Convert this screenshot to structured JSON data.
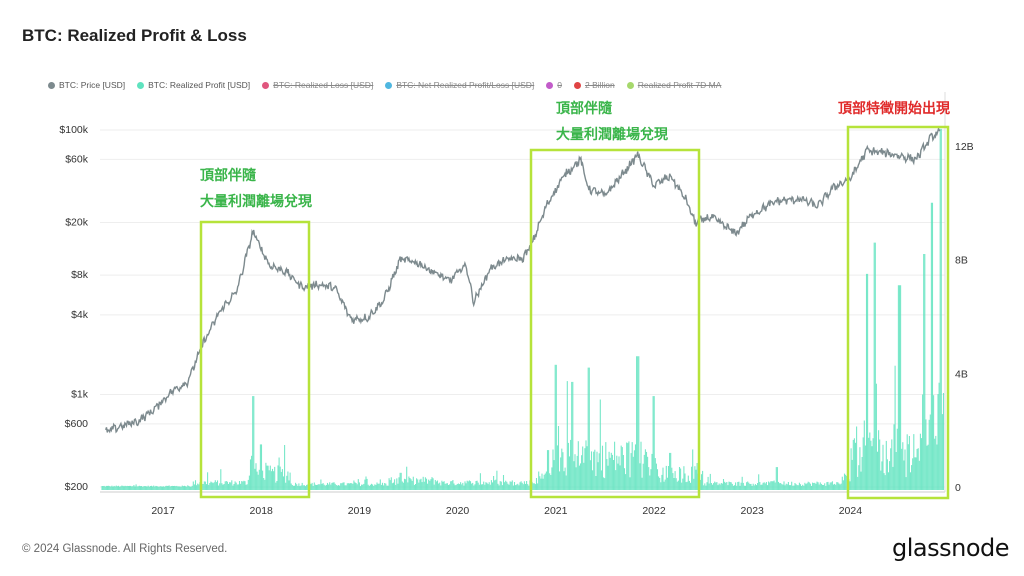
{
  "title": "BTC: Realized Profit & Loss",
  "legend": [
    {
      "label": "BTC: Price [USD]",
      "color": "#7d8a8e",
      "struck": false
    },
    {
      "label": "BTC: Realized Profit [USD]",
      "color": "#5fe3bf",
      "struck": false
    },
    {
      "label": "BTC: Realized Loss [USD]",
      "color": "#e0567e",
      "struck": true
    },
    {
      "label": "BTC: Net Realized Profit/Loss [USD]",
      "color": "#4fb7e0",
      "struck": true
    },
    {
      "label": "0",
      "color": "#c25cc9",
      "struck": true
    },
    {
      "label": "2 Billion",
      "color": "#e04444",
      "struck": true
    },
    {
      "label": "Realized Profit 7D MA",
      "color": "#a6d86c",
      "struck": true
    }
  ],
  "annotations": [
    {
      "line1": "頂部伴隨",
      "line2": "大量利潤離場兌現",
      "color": "#3ab54a"
    },
    {
      "line1": "頂部伴隨",
      "line2": "大量利潤離場兌現",
      "color": "#3ab54a"
    },
    {
      "line1": "頂部特徵開始出現",
      "line2": "",
      "color": "#e02b2b"
    }
  ],
  "highlight_color": "#b6e33a",
  "footer": {
    "copyright": "© 2024 Glassnode. All Rights Reserved.",
    "brand": "glassnode"
  },
  "chart_data": {
    "type": "line",
    "x_ticks": [
      "2017",
      "2018",
      "2019",
      "2020",
      "2021",
      "2022",
      "2023",
      "2024"
    ],
    "y_left": {
      "scale": "log",
      "ticks": [
        "$100k",
        "$60k",
        "$20k",
        "$8k",
        "$4k",
        "$1k",
        "$600",
        "$200"
      ],
      "tick_values": [
        100000,
        60000,
        20000,
        8000,
        4000,
        1000,
        600,
        200
      ],
      "range": [
        200,
        100000
      ]
    },
    "y_right": {
      "scale": "linear",
      "ticks": [
        "12B",
        "8B",
        "4B",
        "0"
      ],
      "tick_values": [
        12,
        8,
        4,
        0
      ],
      "range": [
        0,
        12
      ]
    },
    "highlight_ranges": [
      [
        "2017-06",
        "2018-06"
      ],
      [
        "2020-10",
        "2022-06"
      ],
      [
        "2024-01",
        "2024-12"
      ]
    ],
    "price_series": {
      "name": "BTC: Price [USD]",
      "points": [
        [
          "2016-06",
          520
        ],
        [
          "2016-08",
          580
        ],
        [
          "2016-10",
          630
        ],
        [
          "2016-12",
          780
        ],
        [
          "2017-02",
          1050
        ],
        [
          "2017-04",
          1250
        ],
        [
          "2017-06",
          2500
        ],
        [
          "2017-08",
          4300
        ],
        [
          "2017-10",
          6000
        ],
        [
          "2017-12",
          17000
        ],
        [
          "2018-02",
          9500
        ],
        [
          "2018-04",
          8500
        ],
        [
          "2018-06",
          6500
        ],
        [
          "2018-08",
          6800
        ],
        [
          "2018-10",
          6400
        ],
        [
          "2018-12",
          3700
        ],
        [
          "2019-02",
          3800
        ],
        [
          "2019-04",
          5200
        ],
        [
          "2019-06",
          10500
        ],
        [
          "2019-08",
          10000
        ],
        [
          "2019-10",
          8500
        ],
        [
          "2019-12",
          7200
        ],
        [
          "2020-02",
          9600
        ],
        [
          "2020-03",
          5000
        ],
        [
          "2020-05",
          9000
        ],
        [
          "2020-07",
          10500
        ],
        [
          "2020-09",
          10700
        ],
        [
          "2020-10",
          13500
        ],
        [
          "2020-12",
          28000
        ],
        [
          "2021-02",
          45000
        ],
        [
          "2021-04",
          60000
        ],
        [
          "2021-05",
          36000
        ],
        [
          "2021-07",
          32000
        ],
        [
          "2021-09",
          45000
        ],
        [
          "2021-11",
          65000
        ],
        [
          "2022-01",
          38000
        ],
        [
          "2022-03",
          45000
        ],
        [
          "2022-05",
          29000
        ],
        [
          "2022-06",
          20000
        ],
        [
          "2022-08",
          22000
        ],
        [
          "2022-11",
          16500
        ],
        [
          "2023-01",
          23000
        ],
        [
          "2023-04",
          29000
        ],
        [
          "2023-07",
          30000
        ],
        [
          "2023-09",
          26500
        ],
        [
          "2023-11",
          37000
        ],
        [
          "2024-01",
          43000
        ],
        [
          "2024-03",
          70000
        ],
        [
          "2024-06",
          66000
        ],
        [
          "2024-09",
          60000
        ],
        [
          "2024-11",
          90000
        ],
        [
          "2024-12",
          98000
        ]
      ]
    },
    "profit_series": {
      "name": "BTC: Realized Profit [USD]",
      "unit": "billion USD",
      "peaks": [
        [
          "2017-12",
          3.2
        ],
        [
          "2018-01",
          1.5
        ],
        [
          "2019-06",
          0.5
        ],
        [
          "2020-12",
          1.3
        ],
        [
          "2021-01",
          4.3
        ],
        [
          "2021-03",
          3.7
        ],
        [
          "2021-05",
          4.2
        ],
        [
          "2021-11",
          4.6
        ],
        [
          "2022-01",
          3.2
        ],
        [
          "2022-03",
          1.2
        ],
        [
          "2023-04",
          0.7
        ],
        [
          "2024-03",
          7.5
        ],
        [
          "2024-04",
          8.6
        ],
        [
          "2024-07",
          7.1
        ],
        [
          "2024-10",
          8.2
        ],
        [
          "2024-11",
          10.0
        ],
        [
          "2024-12",
          12.6
        ]
      ]
    }
  }
}
